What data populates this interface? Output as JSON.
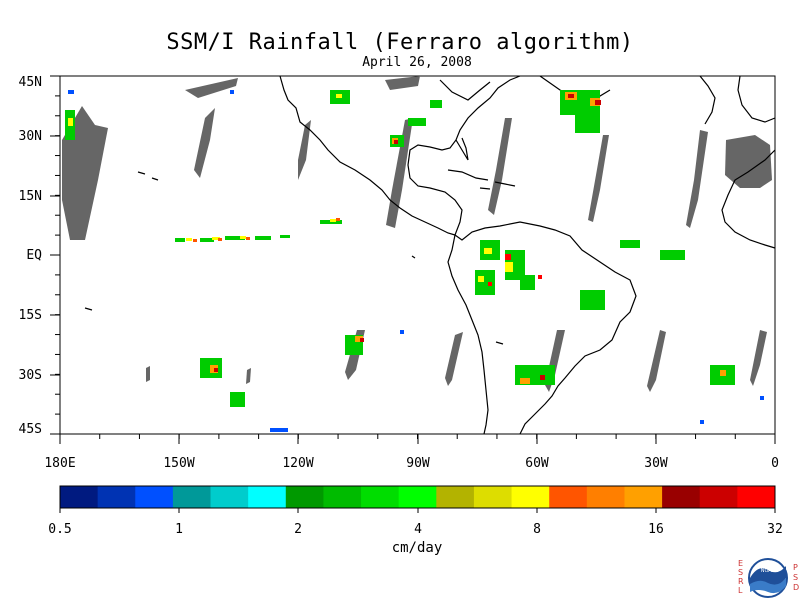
{
  "title": "SSM/I Rainfall (Ferraro algorithm)",
  "date": "April 26, 2008",
  "lat_labels": [
    "45N",
    "30N",
    "15N",
    "EQ",
    "15S",
    "30S",
    "45S"
  ],
  "lon_labels": [
    "180E",
    "150W",
    "120W",
    "90W",
    "60W",
    "30W",
    "0"
  ],
  "colorbar": {
    "tick_labels": [
      "0.5",
      "1",
      "2",
      "4",
      "8",
      "16",
      "32"
    ],
    "units": "cm/day",
    "colors": [
      "#001a80",
      "#0033b3",
      "#0050ff",
      "#009999",
      "#00cccc",
      "#00ffff",
      "#009900",
      "#00bb00",
      "#00dd00",
      "#00ff00",
      "#b3b300",
      "#dddd00",
      "#ffff00",
      "#ff5500",
      "#ff7f00",
      "#ffa000",
      "#990000",
      "#cc0000",
      "#ff0000"
    ]
  },
  "logo": {
    "left_letters": "ESRL",
    "right_letters": "PSD",
    "center_text": "NOAA"
  },
  "colors": {
    "missing_data_gray": "#666666",
    "coastline": "#000000",
    "background": "#ffffff"
  }
}
